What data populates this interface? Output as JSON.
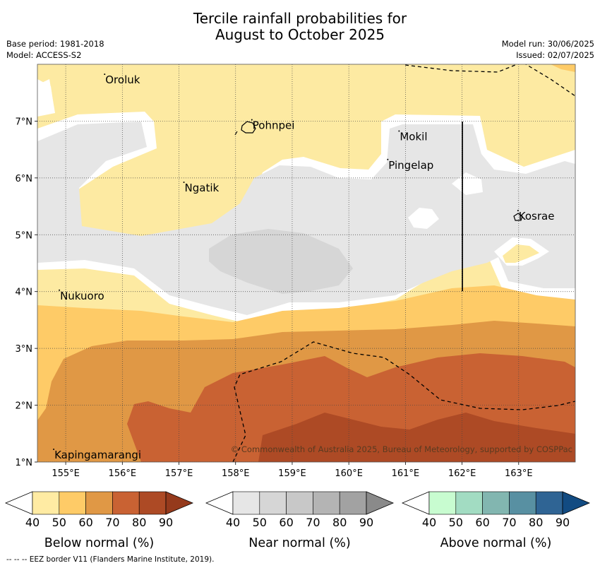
{
  "title_line1": "Tercile rainfall probabilities for",
  "title_line2": "August to October 2025",
  "base_period": "Base period: 1981-2018",
  "model": "Model: ACCESS-S2",
  "model_run": "Model run: 30/06/2025",
  "issued": "Issued: 02/07/2025",
  "copyright": "© Commonwealth of Australia 2025, Bureau of Meteorology, supported by COSPPac",
  "footer_note": "--  --  -- EEZ border V11 (Flanders Marine Institute, 2019).",
  "map": {
    "lon_range": [
      154.5,
      164.0
    ],
    "lat_range": [
      1.0,
      8.0
    ],
    "lon_ticks": [
      "155°E",
      "156°E",
      "157°E",
      "158°E",
      "159°E",
      "160°E",
      "161°E",
      "162°E",
      "163°E"
    ],
    "lat_ticks": [
      "1°N",
      "2°N",
      "3°N",
      "4°N",
      "5°N",
      "6°N",
      "7°N"
    ],
    "places": [
      {
        "name": "Oroluk",
        "lon": 155.7,
        "lat": 7.7
      },
      {
        "name": "Pohnpei",
        "lon": 158.3,
        "lat": 6.9
      },
      {
        "name": "Mokil",
        "lon": 160.9,
        "lat": 6.7
      },
      {
        "name": "Pingelap",
        "lon": 160.7,
        "lat": 6.2
      },
      {
        "name": "Ngatik",
        "lon": 157.1,
        "lat": 5.8
      },
      {
        "name": "Kosrae",
        "lon": 163.0,
        "lat": 5.3
      },
      {
        "name": "Nukuoro",
        "lon": 154.9,
        "lat": 3.9
      },
      {
        "name": "Kapingamarangi",
        "lon": 154.8,
        "lat": 1.1
      }
    ]
  },
  "legends": [
    {
      "label": "Below normal (%)",
      "ticks": [
        "40",
        "50",
        "60",
        "70",
        "80",
        "90"
      ],
      "colors": [
        "#ffeba3",
        "#fecb67",
        "#e09845",
        "#c96233",
        "#ad4a25"
      ],
      "over_color": "#953a1c"
    },
    {
      "label": "Near normal (%)",
      "ticks": [
        "40",
        "50",
        "60",
        "70",
        "80",
        "90"
      ],
      "colors": [
        "#e6e6e6",
        "#d6d6d6",
        "#c8c8c8",
        "#b4b4b4",
        "#a2a2a2"
      ],
      "over_color": "#8a8a8a"
    },
    {
      "label": "Above normal (%)",
      "ticks": [
        "40",
        "50",
        "60",
        "70",
        "80",
        "90"
      ],
      "colors": [
        "#c8fcd0",
        "#a2dcc2",
        "#82b6b0",
        "#5890a2",
        "#2f6494"
      ],
      "over_color": "#124b82"
    }
  ]
}
